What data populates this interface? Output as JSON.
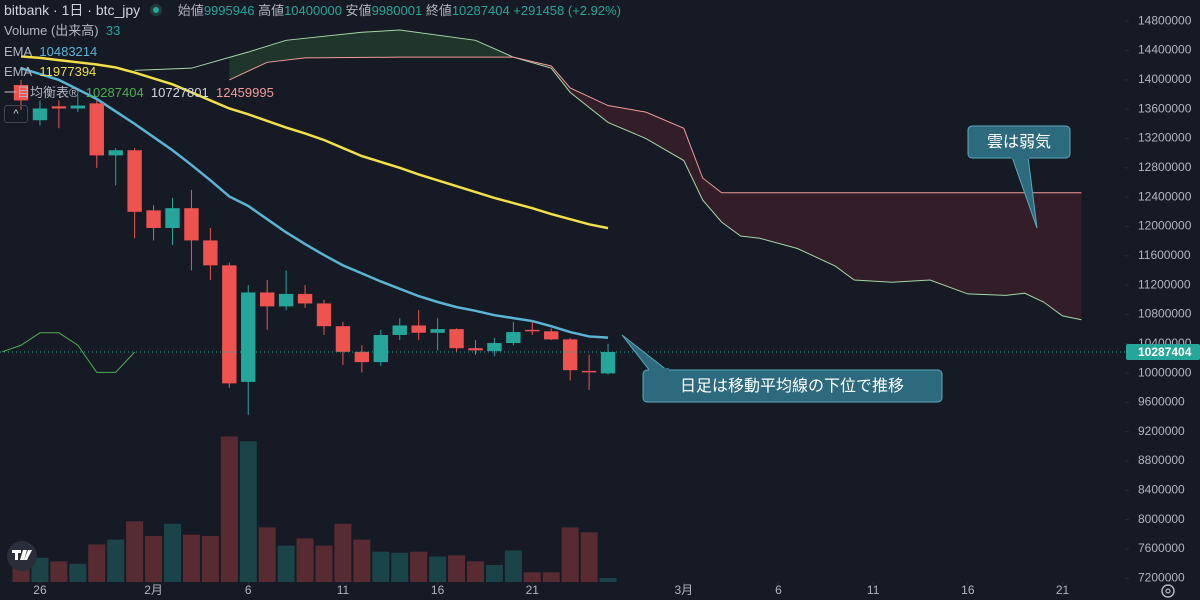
{
  "header": {
    "symbol": "bitbank · 1日 · btc_jpy",
    "ohlc_labels": [
      "始値",
      "高値",
      "安値",
      "終値"
    ],
    "change": "+291458 (+2.92%)"
  },
  "chart_data": {
    "type": "candlestick",
    "x": [
      0,
      1,
      2,
      3,
      4,
      5,
      6,
      7,
      8,
      9,
      10,
      11,
      12,
      13,
      14,
      15,
      16,
      17,
      18,
      19,
      20,
      21,
      22,
      23,
      24,
      25,
      26,
      27,
      28,
      29,
      30,
      31
    ],
    "open": [
      13930000,
      13450000,
      13640000,
      13610000,
      13680000,
      12970000,
      13040000,
      12220000,
      11980000,
      12250000,
      11810000,
      11470000,
      9880000,
      11100000,
      10910000,
      11080000,
      10950000,
      10640000,
      10290000,
      10150000,
      10520000,
      10650000,
      10550000,
      10600000,
      10340000,
      10300000,
      10410000,
      10590000,
      10570000,
      10460000,
      10030000,
      9995946
    ],
    "high": [
      14000000,
      13720000,
      13720000,
      13790000,
      13720000,
      13070000,
      13070000,
      12290000,
      12390000,
      12500000,
      11980000,
      11510000,
      11200000,
      11270000,
      11400000,
      11200000,
      11000000,
      10700000,
      10380000,
      10590000,
      10750000,
      10860000,
      10750000,
      10610000,
      10450000,
      10480000,
      10700000,
      10700000,
      10610000,
      10480000,
      10250000,
      10400000
    ],
    "low": [
      13590000,
      13380000,
      13340000,
      13560000,
      12800000,
      12560000,
      11840000,
      11810000,
      11750000,
      11400000,
      11270000,
      9800000,
      9430000,
      10590000,
      10860000,
      10890000,
      10520000,
      10110000,
      10010000,
      10100000,
      10450000,
      10450000,
      10310000,
      10290000,
      10250000,
      10230000,
      10380000,
      10520000,
      10450000,
      9900000,
      9770000,
      9980001
    ],
    "close": [
      13720000,
      13610000,
      13610000,
      13650000,
      12970000,
      13040000,
      12200000,
      11980000,
      12250000,
      11810000,
      11470000,
      9860000,
      11100000,
      10910000,
      11080000,
      10950000,
      10640000,
      10290000,
      10150000,
      10520000,
      10650000,
      10550000,
      10600000,
      10340000,
      10310000,
      10410000,
      10560000,
      10570000,
      10460000,
      10040000,
      10010000,
      10287404
    ],
    "up_color": "#26a69a",
    "down_color": "#ef5350",
    "volume": {
      "name": "Volume (出来高)",
      "values": [
        190,
        200,
        170,
        150,
        310,
        350,
        500,
        380,
        480,
        390,
        380,
        1200,
        1160,
        450,
        300,
        360,
        300,
        480,
        350,
        250,
        240,
        250,
        210,
        220,
        170,
        140,
        260,
        80,
        80,
        450,
        410,
        33
      ]
    },
    "ema": [
      {
        "name": "EMA",
        "color": "#5ab4d6",
        "values": [
          14160000,
          14080000,
          14000000,
          13870000,
          13740000,
          13570000,
          13400000,
          13220000,
          13040000,
          12840000,
          12630000,
          12410000,
          12280000,
          12100000,
          11920000,
          11760000,
          11610000,
          11470000,
          11360000,
          11250000,
          11150000,
          11050000,
          10970000,
          10900000,
          10850000,
          10790000,
          10750000,
          10710000,
          10640000,
          10560000,
          10500000,
          10483214
        ]
      },
      {
        "name": "EMA",
        "color": "#f2df4a",
        "values": [
          14320000,
          14300000,
          14270000,
          14240000,
          14210000,
          14170000,
          14100000,
          14020000,
          13940000,
          13830000,
          13720000,
          13610000,
          13530000,
          13440000,
          13350000,
          13270000,
          13180000,
          13070000,
          12960000,
          12880000,
          12800000,
          12710000,
          12630000,
          12550000,
          12470000,
          12390000,
          12320000,
          12250000,
          12170000,
          12100000,
          12030000,
          11977394
        ]
      }
    ],
    "ichimoku": {
      "name": "一目均衡表®",
      "lagging": {
        "color": "#4caf50",
        "x": [
          -1,
          0,
          1,
          2,
          3,
          4,
          5,
          6
        ],
        "values": [
          10290000,
          10380000,
          10550000,
          10550000,
          10380000,
          10010000,
          10010000,
          10287404
        ]
      },
      "span_a": {
        "color": "#a5d6a7",
        "x": [
          6,
          9,
          12,
          14,
          18,
          20,
          24,
          26,
          28,
          29,
          31,
          33,
          35,
          36,
          37,
          38,
          39,
          41,
          43,
          44,
          46,
          48,
          50,
          52,
          53,
          54,
          55,
          56
        ],
        "values": [
          14130000,
          14160000,
          14380000,
          14540000,
          14650000,
          14680000,
          14540000,
          14310000,
          14160000,
          13830000,
          13420000,
          13200000,
          12900000,
          12360000,
          12060000,
          11870000,
          11840000,
          11700000,
          11460000,
          11270000,
          11240000,
          11270000,
          11080000,
          11060000,
          11090000,
          10970000,
          10780000,
          10727801
        ]
      },
      "span_b": {
        "color": "#f09a9a",
        "x": [
          11,
          13,
          15,
          20,
          26,
          28,
          29,
          31,
          33,
          35,
          36,
          37,
          56
        ],
        "values": [
          14000000,
          14240000,
          14300000,
          14310000,
          14310000,
          14190000,
          13890000,
          13650000,
          13560000,
          13340000,
          12660000,
          12459995,
          12459995
        ]
      }
    },
    "xlim": [
      -1.11,
      58.3
    ],
    "xticks": [
      {
        "value": 1,
        "label": "26"
      },
      {
        "value": 7,
        "label": "2月"
      },
      {
        "value": 12,
        "label": "6"
      },
      {
        "value": 17,
        "label": "11"
      },
      {
        "value": 22,
        "label": "16"
      },
      {
        "value": 27,
        "label": "21"
      },
      {
        "value": 35,
        "label": "3月"
      },
      {
        "value": 40,
        "label": "6"
      },
      {
        "value": 45,
        "label": "11"
      },
      {
        "value": 50,
        "label": "16"
      },
      {
        "value": 55,
        "label": "21"
      }
    ],
    "ylim": [
      7150000,
      15090000
    ],
    "yticks": [
      7200000,
      7600000,
      8000000,
      8400000,
      8800000,
      9200000,
      9600000,
      10000000,
      10400000,
      10800000,
      11200000,
      11600000,
      12000000,
      12400000,
      12800000,
      13200000,
      13600000,
      14000000,
      14400000,
      14800000
    ],
    "grid": false,
    "annotations": [
      "雲は弱気",
      "日足は移動平均線の下位で推移"
    ]
  }
}
